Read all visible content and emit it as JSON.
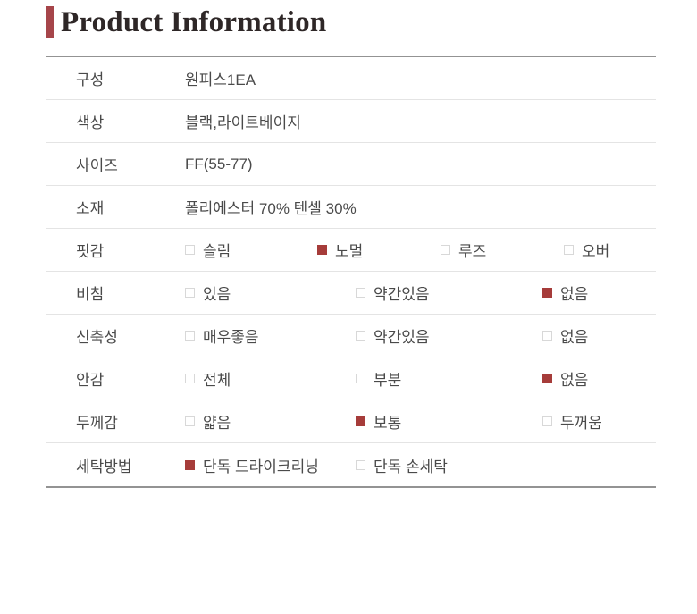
{
  "title": "Product Information",
  "colors": {
    "accent_bar": "#a6454a",
    "checkbox_checked": "#a63c3a",
    "title_text": "#2e2727",
    "body_text": "#4a4a4a",
    "border_strong": "#939393",
    "border_light": "#e4e4e4",
    "checkbox_unchecked_border": "#d8d8d8",
    "page_bg": "#ffffff"
  },
  "icons": {
    "checked": "checkbox-checked-icon",
    "unchecked": "checkbox-unchecked-icon"
  },
  "table": {
    "rows": [
      {
        "label": "구성",
        "type": "text",
        "value": "원피스1EA"
      },
      {
        "label": "색상",
        "type": "text",
        "value": "블랙,라이트베이지"
      },
      {
        "label": "사이즈",
        "type": "text",
        "value": "FF(55-77)"
      },
      {
        "label": "소재",
        "type": "text",
        "value": "폴리에스터 70% 텐셀 30%"
      },
      {
        "label": "핏감",
        "type": "options",
        "options": [
          {
            "label": "슬림",
            "checked": false
          },
          {
            "label": "노멀",
            "checked": true
          },
          {
            "label": "루즈",
            "checked": false
          },
          {
            "label": "오버",
            "checked": false
          }
        ]
      },
      {
        "label": "비침",
        "type": "options",
        "options": [
          {
            "label": "있음",
            "checked": false
          },
          {
            "label": "약간있음",
            "checked": false
          },
          {
            "label": "없음",
            "checked": true
          }
        ]
      },
      {
        "label": "신축성",
        "type": "options",
        "options": [
          {
            "label": "매우좋음",
            "checked": false
          },
          {
            "label": "약간있음",
            "checked": false
          },
          {
            "label": "없음",
            "checked": false
          }
        ]
      },
      {
        "label": "안감",
        "type": "options",
        "options": [
          {
            "label": "전체",
            "checked": false
          },
          {
            "label": "부분",
            "checked": false
          },
          {
            "label": "없음",
            "checked": true
          }
        ]
      },
      {
        "label": "두께감",
        "type": "options",
        "options": [
          {
            "label": "얇음",
            "checked": false
          },
          {
            "label": "보통",
            "checked": true
          },
          {
            "label": "두꺼움",
            "checked": false
          }
        ]
      },
      {
        "label": "세탁방법",
        "type": "options",
        "options": [
          {
            "label": "단독 드라이크리닝",
            "checked": true
          },
          {
            "label": "단독 손세탁",
            "checked": false
          }
        ]
      }
    ]
  }
}
